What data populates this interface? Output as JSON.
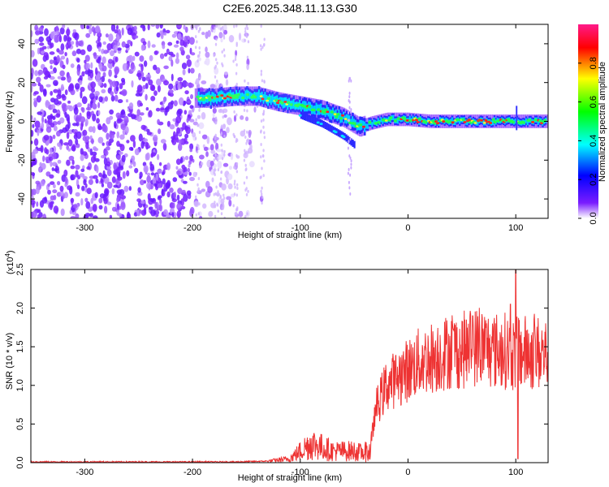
{
  "title": "C2E6.2025.348.11.13.G30",
  "chart_data": [
    {
      "type": "heatmap",
      "xlabel": "Height of straight line (km)",
      "ylabel": "Frequency (Hz)",
      "xlim": [
        -350,
        130
      ],
      "ylim": [
        -50,
        50
      ],
      "xticks": [
        -300,
        -200,
        -100,
        0,
        100
      ],
      "yticks": [
        -40,
        -20,
        0,
        20,
        40
      ],
      "colorbar": {
        "label": "Normalized spectral amplitude",
        "range": [
          0,
          1
        ],
        "ticks": [
          "0.0",
          "0.2",
          "0.4",
          "0.6",
          "0.8"
        ],
        "tick_values": [
          0,
          0.2,
          0.4,
          0.6,
          0.8
        ],
        "colors": [
          "#ffffff",
          "#7a1cff",
          "#0000ff",
          "#00ffff",
          "#00ff00",
          "#ffff00",
          "#ff0000",
          "#ff1a8a"
        ]
      },
      "ridge": {
        "x": [
          -195,
          -180,
          -160,
          -140,
          -120,
          -100,
          -80,
          -60,
          -45,
          -35,
          -20,
          0,
          20,
          50,
          80,
          100,
          130
        ],
        "y": [
          12,
          12,
          13,
          13,
          10,
          8,
          6,
          2,
          -3,
          -1,
          1,
          1,
          0,
          0,
          0,
          0,
          0
        ]
      },
      "noise_region_x": [
        -350,
        -140
      ]
    },
    {
      "type": "line",
      "xlabel": "Height of straight line (km)",
      "ylabel": "SNR (10 * v/v)",
      "scale_label": "(x10",
      "scale_exp": "4",
      "scale_close": ")",
      "xlim": [
        -350,
        130
      ],
      "ylim": [
        0,
        2.5
      ],
      "xticks": [
        -300,
        -200,
        -100,
        0,
        100
      ],
      "yticks": [
        "0.0",
        "0.5",
        "1.0",
        "1.5",
        "2.0",
        "2.5"
      ],
      "ytick_values": [
        0,
        0.5,
        1.0,
        1.5,
        2.0,
        2.5
      ],
      "line_color": "#ee3333",
      "envelope": {
        "x": [
          -350,
          -200,
          -160,
          -130,
          -110,
          -100,
          -90,
          -80,
          -70,
          -60,
          -50,
          -40,
          -35,
          -30,
          -20,
          -10,
          0,
          10,
          20,
          30,
          40,
          50,
          60,
          70,
          80,
          90,
          100,
          105,
          110,
          120,
          130
        ],
        "y": [
          0.01,
          0.01,
          0.01,
          0.02,
          0.05,
          0.15,
          0.25,
          0.2,
          0.15,
          0.15,
          0.15,
          0.12,
          0.15,
          0.7,
          1.0,
          1.1,
          1.2,
          1.3,
          1.35,
          1.4,
          1.45,
          1.45,
          1.5,
          1.5,
          1.45,
          1.45,
          1.4,
          1.42,
          1.42,
          1.42,
          1.4
        ]
      },
      "spikes": [
        {
          "x": 60,
          "y": 1.9
        },
        {
          "x": 100,
          "y": 2.5
        },
        {
          "x": 102,
          "y": 0.05
        },
        {
          "x": 95,
          "y": 2.05
        }
      ]
    }
  ]
}
